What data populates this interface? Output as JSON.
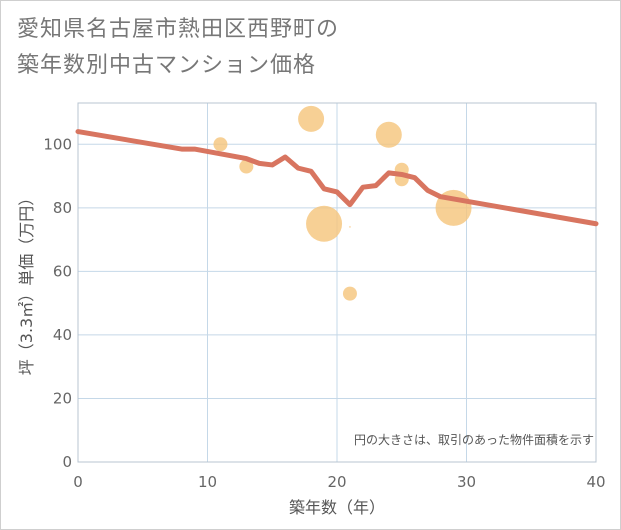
{
  "title_line1": "愛知県名古屋市熱田区西野町の",
  "title_line2": "築年数別中古マンション価格",
  "chart_data": {
    "type": "scatter",
    "xlabel": "築年数（年）",
    "ylabel": "坪（3.3㎡）単価（万円）",
    "xlim": [
      0,
      40
    ],
    "ylim": [
      0,
      113
    ],
    "xticks": [
      "0",
      "10",
      "20",
      "30",
      "40"
    ],
    "yticks": [
      "0",
      "20",
      "40",
      "60",
      "80",
      "100"
    ],
    "grid": true,
    "annotation": "円の大きさは、取引のあった物件面積を示す",
    "colors": {
      "bubble": "#f5c47a",
      "trend": "#d87560",
      "grid": "#c5d8e8",
      "frame": "#b8c4d0"
    },
    "bubbles": [
      {
        "x": 11,
        "y": 100,
        "size": 1.0
      },
      {
        "x": 13,
        "y": 93,
        "size": 1.0
      },
      {
        "x": 18,
        "y": 108,
        "size": 2.0
      },
      {
        "x": 19,
        "y": 75,
        "size": 3.0
      },
      {
        "x": 21,
        "y": 74,
        "size": 0.2
      },
      {
        "x": 21,
        "y": 53,
        "size": 1.0
      },
      {
        "x": 24,
        "y": 103,
        "size": 2.0
      },
      {
        "x": 25,
        "y": 92,
        "size": 1.0
      },
      {
        "x": 25,
        "y": 89,
        "size": 1.0
      },
      {
        "x": 29,
        "y": 80,
        "size": 3.0
      }
    ],
    "trend": {
      "x": [
        0,
        8,
        9,
        13,
        14,
        15,
        16,
        17,
        18,
        19,
        20,
        21,
        22,
        23,
        24,
        25,
        26,
        27,
        28,
        40
      ],
      "y": [
        104,
        98.5,
        98.5,
        95.5,
        94,
        93.5,
        96,
        92.5,
        91.5,
        86,
        85,
        81,
        86.5,
        87,
        91,
        90.5,
        89.5,
        85.5,
        83.5,
        75
      ]
    }
  }
}
